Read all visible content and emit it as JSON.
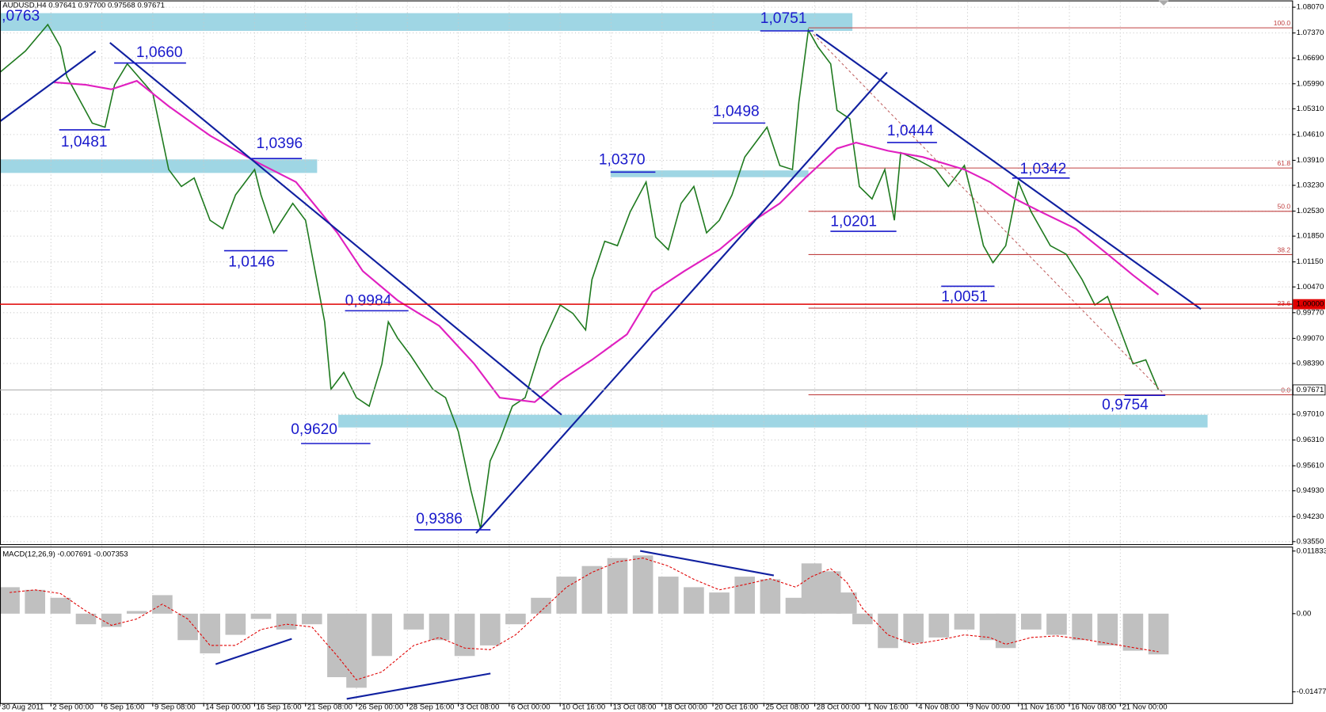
{
  "chart_data": [
    {
      "type": "line",
      "title": "AUDUSD,H4 0.97641 0.97700 0.97568 0.97671",
      "xlim": [
        0,
        406
      ],
      "ylim": [
        0.9355,
        1.0807
      ],
      "grid": true,
      "yticks": [
        {
          "value": 1.0807,
          "label": "1.08070"
        },
        {
          "value": 1.0737,
          "label": "1.07370"
        },
        {
          "value": 1.0669,
          "label": "1.06690"
        },
        {
          "value": 1.0599,
          "label": "1.05990"
        },
        {
          "value": 1.0531,
          "label": "1.05310"
        },
        {
          "value": 1.0461,
          "label": "1.04610"
        },
        {
          "value": 1.0391,
          "label": "1.03910"
        },
        {
          "value": 1.0323,
          "label": "1.03230"
        },
        {
          "value": 1.0253,
          "label": "1.02530"
        },
        {
          "value": 1.0185,
          "label": "1.01850"
        },
        {
          "value": 1.0115,
          "label": "1.01150"
        },
        {
          "value": 1.0047,
          "label": "1.00470"
        },
        {
          "value": 0.9977,
          "label": "0.99770"
        },
        {
          "value": 0.9907,
          "label": "0.99070"
        },
        {
          "value": 0.9839,
          "label": "0.98390"
        },
        {
          "value": 0.9701,
          "label": "0.97010"
        },
        {
          "value": 0.9631,
          "label": "0.96310"
        },
        {
          "value": 0.9561,
          "label": "0.95610"
        },
        {
          "value": 0.9493,
          "label": "0.94930"
        },
        {
          "value": 0.9423,
          "label": "0.94230"
        },
        {
          "value": 0.9355,
          "label": "0.93550"
        }
      ],
      "xticks": [
        {
          "value": 0,
          "label": "30 Aug 2011"
        },
        {
          "value": 16,
          "label": "2 Sep 00:00"
        },
        {
          "value": 32,
          "label": "6 Sep 16:00"
        },
        {
          "value": 48,
          "label": "9 Sep 08:00"
        },
        {
          "value": 64,
          "label": "14 Sep 00:00"
        },
        {
          "value": 80,
          "label": "16 Sep 16:00"
        },
        {
          "value": 96,
          "label": "21 Sep 08:00"
        },
        {
          "value": 112,
          "label": "26 Sep 00:00"
        },
        {
          "value": 128,
          "label": "28 Sep 16:00"
        },
        {
          "value": 144,
          "label": "3 Oct 08:00"
        },
        {
          "value": 160,
          "label": "6 Oct 00:00"
        },
        {
          "value": 176,
          "label": "10 Oct 16:00"
        },
        {
          "value": 192,
          "label": "13 Oct 08:00"
        },
        {
          "value": 208,
          "label": "18 Oct 00:00"
        },
        {
          "value": 224,
          "label": "20 Oct 16:00"
        },
        {
          "value": 240,
          "label": "25 Oct 08:00"
        },
        {
          "value": 256,
          "label": "28 Oct 00:00"
        },
        {
          "value": 272,
          "label": "1 Nov 16:00"
        },
        {
          "value": 288,
          "label": "4 Nov 08:00"
        },
        {
          "value": 304,
          "label": "9 Nov 00:00"
        },
        {
          "value": 320,
          "label": "11 Nov 16:00"
        },
        {
          "value": 336,
          "label": "16 Nov 08:00"
        },
        {
          "value": 352,
          "label": "21 Nov 00:00"
        }
      ],
      "series": [
        {
          "color": "#1f7a1f",
          "x": [
            0,
            8,
            15,
            19,
            21,
            29,
            33,
            36,
            40,
            48,
            53,
            57,
            61,
            66,
            70,
            74,
            80,
            82,
            86,
            92,
            96,
            99,
            102,
            104,
            108,
            112,
            116,
            120,
            122,
            125,
            129,
            136,
            140,
            144,
            148,
            151,
            154,
            157,
            161,
            165,
            170,
            176,
            180,
            184,
            186,
            190,
            194,
            198,
            203,
            206,
            210,
            214,
            218,
            222,
            226,
            230,
            234,
            241,
            245,
            249,
            251,
            254,
            257,
            261,
            263,
            267,
            270,
            274,
            278,
            281,
            283,
            289,
            294,
            298,
            303,
            306,
            309,
            312,
            316,
            320,
            324,
            330,
            335,
            340,
            344,
            348,
            352,
            356,
            360,
            364
          ],
          "values": [
            1.063,
            1.0688,
            1.076,
            1.0699,
            1.0619,
            1.0492,
            1.0481,
            1.0596,
            1.0653,
            1.0573,
            1.0366,
            1.032,
            1.0343,
            1.0228,
            1.0205,
            1.0297,
            1.0366,
            1.0297,
            1.0194,
            1.0274,
            1.0228,
            1.009,
            0.9952,
            0.9769,
            0.9815,
            0.9746,
            0.9723,
            0.9838,
            0.9952,
            0.9907,
            0.9861,
            0.9769,
            0.9746,
            0.9654,
            0.9493,
            0.939,
            0.9574,
            0.9631,
            0.9723,
            0.9746,
            0.9884,
            0.9998,
            0.9975,
            0.993,
            1.0067,
            1.0171,
            1.0159,
            1.0251,
            1.0332,
            1.0182,
            1.0148,
            1.0274,
            1.032,
            1.0194,
            1.0228,
            1.0297,
            1.04,
            1.0481,
            1.0377,
            1.0366,
            1.055,
            1.0745,
            1.0699,
            1.0653,
            1.0527,
            1.0504,
            1.032,
            1.0286,
            1.0366,
            1.0228,
            1.0412,
            1.0389,
            1.0366,
            1.032,
            1.0377,
            1.0274,
            1.0159,
            1.0113,
            1.0159,
            1.0332,
            1.0251,
            1.0159,
            1.0136,
            1.0067,
            0.9998,
            1.0021,
            0.993,
            0.9838,
            0.9849,
            0.9767
          ]
        },
        {
          "color": "#e020c0",
          "x": [
            17,
            27,
            35,
            43,
            53,
            66,
            80,
            93,
            106,
            114,
            125,
            138,
            149,
            157,
            168,
            176,
            186,
            197,
            205,
            215,
            226,
            237,
            245,
            253,
            263,
            269,
            279,
            290,
            303,
            311,
            319,
            327,
            338,
            348,
            356,
            364
          ],
          "values": [
            1.0603,
            1.0596,
            1.0584,
            1.0607,
            1.0538,
            1.0458,
            1.0389,
            1.0332,
            1.0194,
            1.009,
            1.001,
            0.9941,
            0.9838,
            0.9746,
            0.9734,
            0.9792,
            0.9849,
            0.9918,
            1.0033,
            1.009,
            1.0148,
            1.0228,
            1.0274,
            1.0343,
            1.0423,
            1.0439,
            1.0417,
            1.04,
            1.0366,
            1.0332,
            1.0286,
            1.0251,
            1.0205,
            1.0136,
            1.0079,
            1.0026
          ]
        }
      ],
      "reference_line": {
        "value": 1.0,
        "label": "1.00000",
        "color": "#e00000"
      },
      "current_price": {
        "value": 0.97671,
        "label": "0.97671"
      },
      "fibonacci": {
        "high": 1.0751,
        "low": 0.9754,
        "color": "#c04040",
        "levels": [
          {
            "value": 100,
            "label": "100.0"
          },
          {
            "value": 61.8,
            "label": "61.8"
          },
          {
            "value": 50,
            "label": "50.0"
          },
          {
            "value": 38.2,
            "label": "38.2"
          },
          {
            "value": 23.6,
            "label": "23.6"
          },
          {
            "value": 0,
            "label": "0.0"
          }
        ]
      },
      "annotations": [
        ",0763",
        "1,0660",
        "1,0481",
        "1,0396",
        "1,0146",
        "0,9984",
        "0,9620",
        "0,9386",
        "1,0370",
        "1,0498",
        "1,0751",
        "1,0444",
        "1,0201",
        "1,0342",
        "1,0051",
        "0,9754"
      ]
    },
    {
      "type": "bar",
      "title": "MACD(12,26,9) -0.007691 -0.007353",
      "ylim": [
        -0.0169,
        0.0125
      ],
      "yticks": [
        0.011833,
        {
          "value": 0,
          "label": "0.00"
        },
        -0.01477
      ],
      "x": [
        3,
        11,
        19,
        27,
        35,
        43,
        51,
        59,
        66,
        74,
        82,
        90,
        98,
        106,
        112,
        120,
        130,
        138,
        146,
        154,
        162,
        170,
        178,
        186,
        194,
        202,
        210,
        218,
        226,
        234,
        242,
        250,
        255,
        261,
        266,
        271,
        279,
        287,
        295,
        303,
        311,
        316,
        324,
        332,
        340,
        348,
        356,
        364
      ],
      "series": [
        {
          "color": "#c0c0c0",
          "values": [
            0.005,
            0.0045,
            0.003,
            -0.002,
            -0.0025,
            0.0005,
            0.0035,
            -0.005,
            -0.0075,
            -0.004,
            -0.001,
            -0.003,
            -0.002,
            -0.012,
            -0.014,
            -0.008,
            -0.003,
            -0.005,
            -0.008,
            -0.006,
            -0.002,
            0.003,
            0.007,
            0.009,
            0.0105,
            0.011,
            0.007,
            0.005,
            0.004,
            0.007,
            0.0065,
            0.003,
            0.0095,
            0.008,
            0.004,
            -0.002,
            -0.0065,
            -0.0055,
            -0.0045,
            -0.003,
            -0.005,
            -0.0065,
            -0.003,
            -0.004,
            -0.005,
            -0.006,
            -0.007,
            -0.0077
          ]
        },
        {
          "color": "#e00000",
          "type": "line",
          "values": [
            0.004,
            0.0045,
            0.0038,
            0.0005,
            -0.0022,
            -0.001,
            0.0018,
            -0.001,
            -0.006,
            -0.006,
            -0.003,
            -0.002,
            -0.0025,
            -0.008,
            -0.0125,
            -0.011,
            -0.006,
            -0.0045,
            -0.0065,
            -0.0068,
            -0.004,
            0.0005,
            0.005,
            0.0078,
            0.0098,
            0.0105,
            0.009,
            0.0065,
            0.0045,
            0.0055,
            0.0066,
            0.005,
            0.007,
            0.0085,
            0.006,
            0.001,
            -0.004,
            -0.0058,
            -0.005,
            -0.004,
            -0.0045,
            -0.0058,
            -0.0045,
            -0.0042,
            -0.0048,
            -0.0056,
            -0.0064,
            -0.0072
          ]
        }
      ]
    }
  ]
}
